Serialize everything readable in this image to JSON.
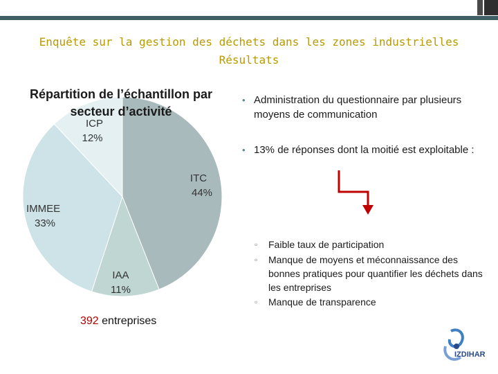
{
  "title_line1": "Enquête sur la gestion des déchets dans les zones industrielles",
  "title_line2": "Résultats",
  "chart_data": {
    "type": "pie",
    "title": "Répartition de l’échantillon par secteur d’activité",
    "slices": [
      {
        "name": "ITC",
        "label": "44%",
        "value": 44,
        "color": "#a9babd"
      },
      {
        "name": "IAA",
        "label": "11%",
        "value": 11,
        "color": "#bfd6d3"
      },
      {
        "name": "IMMEE",
        "label": "33%",
        "value": 33,
        "color": "#cde3e7"
      },
      {
        "name": "ICP",
        "label": "12%",
        "value": 12,
        "color": "#e4f0f2"
      }
    ]
  },
  "sample": {
    "count": "392",
    "text": "entreprises"
  },
  "bullets": [
    "Administration du questionnaire par plusieurs moyens de communication",
    "13% de réponses dont la moitié  est exploitable :"
  ],
  "sub_bullets": [
    "Faible taux de participation",
    "Manque de moyens et méconnaissance des bonnes pratiques pour quantifier les déchets dans les entreprises",
    "Manque de transparence"
  ],
  "colors": {
    "title": "#b89a00",
    "arrow": "#c00000",
    "band": "#3f5f66"
  },
  "logo": {
    "text": "IZDIHAR"
  }
}
